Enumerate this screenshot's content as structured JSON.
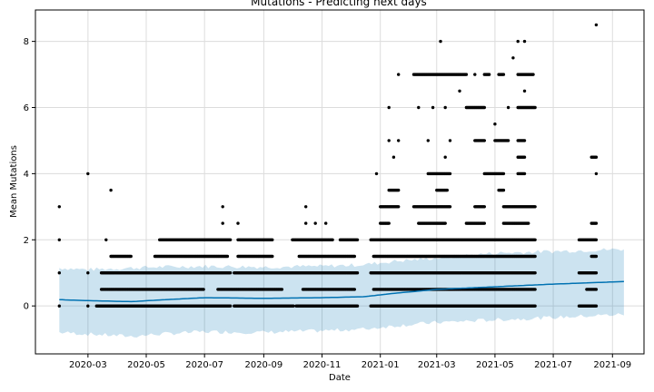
{
  "chart_data": {
    "type": "scatter",
    "title": "Mutations - Predicting next days",
    "xlabel": "Date",
    "ylabel": "Mean Mutations",
    "x_ticks": [
      "2020-03",
      "2020-05",
      "2020-07",
      "2020-09",
      "2020-11",
      "2021-01",
      "2021-03",
      "2021-05",
      "2021-07",
      "2021-09"
    ],
    "y_ticks": [
      "0",
      "2",
      "4",
      "6",
      "8"
    ],
    "xlim": [
      "2020-01-06",
      "2021-10-04"
    ],
    "ylim": [
      -1.45,
      8.95
    ],
    "grid": true,
    "colors": {
      "points": "#000000",
      "trend": "#0072B2",
      "band": "#0072B2"
    },
    "point_rows": [
      {
        "y": 0,
        "ranges": [
          [
            "2020-01-31",
            "2020-01-31"
          ],
          [
            "2020-03-01",
            "2020-03-01"
          ],
          [
            "2020-03-10",
            "2020-07-28"
          ],
          [
            "2020-08-01",
            "2020-10-02"
          ],
          [
            "2020-10-05",
            "2020-12-08"
          ],
          [
            "2020-12-22",
            "2021-06-12"
          ],
          [
            "2021-07-28",
            "2021-08-15"
          ]
        ]
      },
      {
        "y": 0.5,
        "ranges": [
          [
            "2020-03-15",
            "2020-06-30"
          ],
          [
            "2020-07-15",
            "2020-09-20"
          ],
          [
            "2020-10-12",
            "2020-12-05"
          ],
          [
            "2020-12-25",
            "2021-06-12"
          ],
          [
            "2021-08-05",
            "2021-08-15"
          ]
        ]
      },
      {
        "y": 1,
        "ranges": [
          [
            "2020-01-31",
            "2020-01-31"
          ],
          [
            "2020-03-01",
            "2020-03-01"
          ],
          [
            "2020-03-15",
            "2020-07-28"
          ],
          [
            "2020-08-01",
            "2020-12-08"
          ],
          [
            "2020-12-22",
            "2021-06-12"
          ],
          [
            "2021-07-28",
            "2021-08-15"
          ]
        ]
      },
      {
        "y": 1.5,
        "ranges": [
          [
            "2020-03-25",
            "2020-04-15"
          ],
          [
            "2020-05-10",
            "2020-07-25"
          ],
          [
            "2020-08-05",
            "2020-09-10"
          ],
          [
            "2020-10-08",
            "2020-12-05"
          ],
          [
            "2020-12-25",
            "2021-06-12"
          ],
          [
            "2021-08-10",
            "2021-08-15"
          ]
        ]
      },
      {
        "y": 2,
        "ranges": [
          [
            "2020-01-31",
            "2020-01-31"
          ],
          [
            "2020-05-15",
            "2020-07-28"
          ],
          [
            "2020-08-05",
            "2020-09-10"
          ],
          [
            "2020-10-01",
            "2020-11-12"
          ],
          [
            "2020-11-20",
            "2020-12-08"
          ],
          [
            "2020-12-22",
            "2021-06-12"
          ],
          [
            "2021-07-28",
            "2021-08-15"
          ]
        ]
      },
      {
        "y": 2.5,
        "ranges": [
          [
            "2021-01-01",
            "2021-01-10"
          ],
          [
            "2021-02-10",
            "2021-03-10"
          ],
          [
            "2021-04-01",
            "2021-04-20"
          ],
          [
            "2021-05-10",
            "2021-06-05"
          ],
          [
            "2021-08-10",
            "2021-08-15"
          ]
        ]
      },
      {
        "y": 3,
        "ranges": [
          [
            "2021-01-01",
            "2021-01-20"
          ],
          [
            "2021-02-05",
            "2021-03-15"
          ],
          [
            "2021-04-10",
            "2021-04-20"
          ],
          [
            "2021-05-10",
            "2021-06-12"
          ]
        ]
      },
      {
        "y": 3.5,
        "ranges": [
          [
            "2021-01-10",
            "2021-01-20"
          ],
          [
            "2021-03-01",
            "2021-03-12"
          ],
          [
            "2021-05-05",
            "2021-05-10"
          ]
        ]
      },
      {
        "y": 4,
        "ranges": [
          [
            "2021-02-20",
            "2021-03-15"
          ],
          [
            "2021-04-20",
            "2021-05-10"
          ],
          [
            "2021-05-25",
            "2021-06-01"
          ]
        ]
      },
      {
        "y": 4.5,
        "ranges": [
          [
            "2021-01-15",
            "2021-01-15"
          ],
          [
            "2021-03-10",
            "2021-03-10"
          ],
          [
            "2021-05-25",
            "2021-06-01"
          ],
          [
            "2021-08-10",
            "2021-08-15"
          ]
        ]
      },
      {
        "y": 5,
        "ranges": [
          [
            "2021-01-10",
            "2021-01-10"
          ],
          [
            "2021-01-20",
            "2021-01-20"
          ],
          [
            "2021-02-20",
            "2021-02-20"
          ],
          [
            "2021-03-15",
            "2021-03-15"
          ],
          [
            "2021-04-10",
            "2021-04-20"
          ],
          [
            "2021-05-01",
            "2021-05-15"
          ],
          [
            "2021-05-25",
            "2021-06-01"
          ]
        ]
      },
      {
        "y": 6,
        "ranges": [
          [
            "2021-01-10",
            "2021-01-10"
          ],
          [
            "2021-02-10",
            "2021-02-10"
          ],
          [
            "2021-03-10",
            "2021-03-10"
          ],
          [
            "2021-04-01",
            "2021-04-20"
          ],
          [
            "2021-05-15",
            "2021-05-15"
          ],
          [
            "2021-05-25",
            "2021-06-12"
          ]
        ]
      },
      {
        "y": 7,
        "ranges": [
          [
            "2021-01-20",
            "2021-01-20"
          ],
          [
            "2021-02-05",
            "2021-04-01"
          ],
          [
            "2021-04-20",
            "2021-04-25"
          ],
          [
            "2021-05-05",
            "2021-05-10"
          ],
          [
            "2021-05-25",
            "2021-06-10"
          ]
        ]
      }
    ],
    "extra_points": [
      {
        "x": "2020-01-31",
        "y": 3
      },
      {
        "x": "2020-03-01",
        "y": 4
      },
      {
        "x": "2020-03-20",
        "y": 2
      },
      {
        "x": "2020-03-25",
        "y": 3.5
      },
      {
        "x": "2020-07-20",
        "y": 3
      },
      {
        "x": "2020-07-20",
        "y": 2.5
      },
      {
        "x": "2020-08-05",
        "y": 2.5
      },
      {
        "x": "2020-10-15",
        "y": 3
      },
      {
        "x": "2020-10-15",
        "y": 2.5
      },
      {
        "x": "2020-10-25",
        "y": 2.5
      },
      {
        "x": "2020-11-05",
        "y": 2.5
      },
      {
        "x": "2020-12-28",
        "y": 4
      },
      {
        "x": "2021-02-25",
        "y": 6
      },
      {
        "x": "2021-03-05",
        "y": 8
      },
      {
        "x": "2021-03-25",
        "y": 6.5
      },
      {
        "x": "2021-04-10",
        "y": 7
      },
      {
        "x": "2021-05-01",
        "y": 5.5
      },
      {
        "x": "2021-05-20",
        "y": 7.5
      },
      {
        "x": "2021-05-25",
        "y": 8
      },
      {
        "x": "2021-06-01",
        "y": 8
      },
      {
        "x": "2021-06-01",
        "y": 6.5
      },
      {
        "x": "2021-08-15",
        "y": 8.5
      },
      {
        "x": "2021-08-15",
        "y": 4
      }
    ],
    "trend": [
      {
        "x": "2020-01-31",
        "yhat": 0.19,
        "lower": -0.8,
        "upper": 1.15
      },
      {
        "x": "2020-03-01",
        "yhat": 0.16,
        "lower": -0.85,
        "upper": 1.1
      },
      {
        "x": "2020-04-15",
        "yhat": 0.13,
        "lower": -0.92,
        "upper": 1.15
      },
      {
        "x": "2020-05-15",
        "yhat": 0.18,
        "lower": -0.85,
        "upper": 1.18
      },
      {
        "x": "2020-07-01",
        "yhat": 0.25,
        "lower": -0.78,
        "upper": 1.2
      },
      {
        "x": "2020-09-01",
        "yhat": 0.23,
        "lower": -0.8,
        "upper": 1.18
      },
      {
        "x": "2020-11-01",
        "yhat": 0.25,
        "lower": -0.75,
        "upper": 1.2
      },
      {
        "x": "2020-12-15",
        "yhat": 0.28,
        "lower": -0.7,
        "upper": 1.25
      },
      {
        "x": "2021-01-15",
        "yhat": 0.38,
        "lower": -0.6,
        "upper": 1.35
      },
      {
        "x": "2021-03-01",
        "yhat": 0.5,
        "lower": -0.5,
        "upper": 1.45
      },
      {
        "x": "2021-05-01",
        "yhat": 0.58,
        "lower": -0.42,
        "upper": 1.6
      },
      {
        "x": "2021-07-01",
        "yhat": 0.66,
        "lower": -0.35,
        "upper": 1.65
      },
      {
        "x": "2021-09-15",
        "yhat": 0.74,
        "lower": -0.25,
        "upper": 1.72
      }
    ]
  }
}
